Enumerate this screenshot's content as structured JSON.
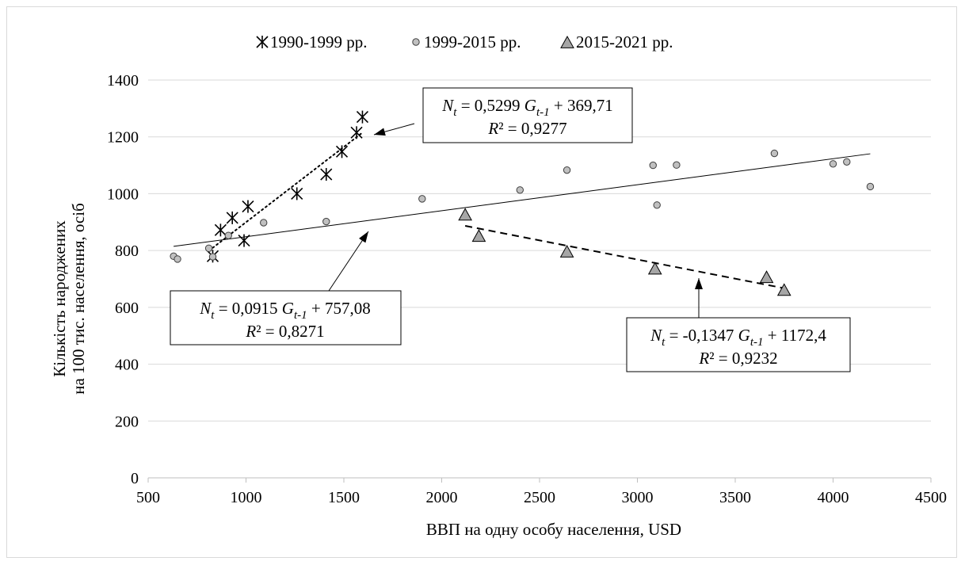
{
  "chart_data": {
    "type": "scatter",
    "xlabel": "ВВП на одну особу населення, USD",
    "ylabel_line1": "Кількість народжених",
    "ylabel_line2": "на 100 тис. населення, осіб",
    "xlim": [
      500,
      4500
    ],
    "ylim": [
      0,
      1400
    ],
    "x_ticks": [
      500,
      1000,
      1500,
      2000,
      2500,
      3000,
      3500,
      4000,
      4500
    ],
    "y_ticks": [
      0,
      200,
      400,
      600,
      800,
      1000,
      1200,
      1400
    ],
    "grid": "horizontal",
    "legend_position": "top",
    "series": [
      {
        "name": "1990-1999 рр.",
        "marker": "asterisk",
        "color": "#000000",
        "points": [
          [
            830,
            780
          ],
          [
            870,
            872
          ],
          [
            930,
            915
          ],
          [
            990,
            835
          ],
          [
            1010,
            955
          ],
          [
            1260,
            1000
          ],
          [
            1410,
            1068
          ],
          [
            1490,
            1148
          ],
          [
            1565,
            1215
          ],
          [
            1595,
            1270
          ]
        ],
        "trend": {
          "slope": 0.5299,
          "intercept": 369.71,
          "x_range": [
            830,
            1600
          ],
          "style": "dotted"
        }
      },
      {
        "name": "1999-2015 рр.",
        "marker": "circle",
        "color": "#c0c0c0",
        "points": [
          [
            630,
            780
          ],
          [
            650,
            770
          ],
          [
            810,
            808
          ],
          [
            830,
            778
          ],
          [
            910,
            853
          ],
          [
            1090,
            898
          ],
          [
            1410,
            902
          ],
          [
            1900,
            982
          ],
          [
            2400,
            1013
          ],
          [
            2640,
            1083
          ],
          [
            3080,
            1100
          ],
          [
            3100,
            960
          ],
          [
            3200,
            1101
          ],
          [
            3700,
            1142
          ],
          [
            4000,
            1105
          ],
          [
            4070,
            1112
          ],
          [
            4190,
            1025
          ]
        ],
        "trend": {
          "slope": 0.0915,
          "intercept": 757.08,
          "x_range": [
            630,
            4190
          ],
          "style": "solid"
        }
      },
      {
        "name": "2015-2021 рр.",
        "marker": "triangle",
        "color": "#a6a6a6",
        "points": [
          [
            2120,
            925
          ],
          [
            2190,
            850
          ],
          [
            2640,
            795
          ],
          [
            3090,
            735
          ],
          [
            3660,
            705
          ],
          [
            3750,
            660
          ]
        ],
        "trend": {
          "slope": -0.1347,
          "intercept": 1172.4,
          "x_range": [
            2120,
            3750
          ],
          "style": "dashed"
        }
      }
    ],
    "annotations": [
      {
        "id": "eq1",
        "eq_parts": [
          "N",
          "t",
          " = 0,5299 ",
          "G",
          "t-1",
          " + 369,71"
        ],
        "r2_label": "R",
        "r2_value": "² = 0,9277"
      },
      {
        "id": "eq2",
        "eq_parts": [
          "N",
          "t",
          " = 0,0915 ",
          "G",
          "t-1",
          " + 757,08"
        ],
        "r2_label": "R",
        "r2_value": "² = 0,8271"
      },
      {
        "id": "eq3",
        "eq_parts": [
          "N",
          "t",
          " = -0,1347 ",
          "G",
          "t-1",
          " + 1172,4"
        ],
        "r2_label": "R",
        "r2_value": "² = 0,9232"
      }
    ]
  }
}
